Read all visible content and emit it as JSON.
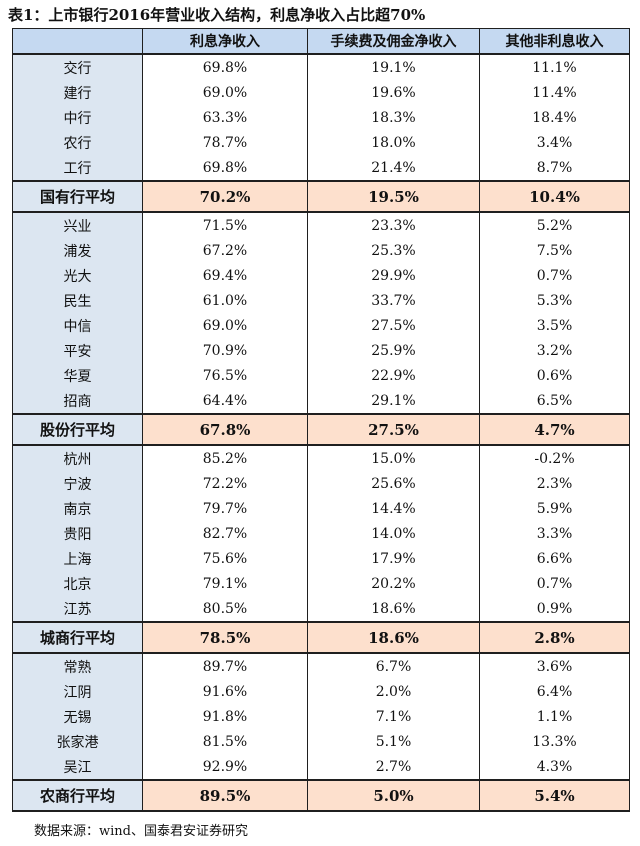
{
  "title": "表1：上市银行2016年营业收入结构，利息净收入占比超70%",
  "headers": [
    "",
    "利息净收入",
    "手续费及佣金净收入",
    "其他非利息收入"
  ],
  "groups": [
    {
      "rows": [
        {
          "name": "交行",
          "v": [
            "69.8%",
            "19.1%",
            "11.1%"
          ]
        },
        {
          "name": "建行",
          "v": [
            "69.0%",
            "19.6%",
            "11.4%"
          ]
        },
        {
          "name": "中行",
          "v": [
            "63.3%",
            "18.3%",
            "18.4%"
          ]
        },
        {
          "name": "农行",
          "v": [
            "78.7%",
            "18.0%",
            "3.4%"
          ]
        },
        {
          "name": "工行",
          "v": [
            "69.8%",
            "21.4%",
            "8.7%"
          ]
        }
      ],
      "avg": {
        "name": "国有行平均",
        "v": [
          "70.2%",
          "19.5%",
          "10.4%"
        ]
      }
    },
    {
      "rows": [
        {
          "name": "兴业",
          "v": [
            "71.5%",
            "23.3%",
            "5.2%"
          ]
        },
        {
          "name": "浦发",
          "v": [
            "67.2%",
            "25.3%",
            "7.5%"
          ]
        },
        {
          "name": "光大",
          "v": [
            "69.4%",
            "29.9%",
            "0.7%"
          ]
        },
        {
          "name": "民生",
          "v": [
            "61.0%",
            "33.7%",
            "5.3%"
          ]
        },
        {
          "name": "中信",
          "v": [
            "69.0%",
            "27.5%",
            "3.5%"
          ]
        },
        {
          "name": "平安",
          "v": [
            "70.9%",
            "25.9%",
            "3.2%"
          ]
        },
        {
          "name": "华夏",
          "v": [
            "76.5%",
            "22.9%",
            "0.6%"
          ]
        },
        {
          "name": "招商",
          "v": [
            "64.4%",
            "29.1%",
            "6.5%"
          ]
        }
      ],
      "avg": {
        "name": "股份行平均",
        "v": [
          "67.8%",
          "27.5%",
          "4.7%"
        ]
      }
    },
    {
      "rows": [
        {
          "name": "杭州",
          "v": [
            "85.2%",
            "15.0%",
            "-0.2%"
          ]
        },
        {
          "name": "宁波",
          "v": [
            "72.2%",
            "25.6%",
            "2.3%"
          ]
        },
        {
          "name": "南京",
          "v": [
            "79.7%",
            "14.4%",
            "5.9%"
          ]
        },
        {
          "name": "贵阳",
          "v": [
            "82.7%",
            "14.0%",
            "3.3%"
          ]
        },
        {
          "name": "上海",
          "v": [
            "75.6%",
            "17.9%",
            "6.6%"
          ]
        },
        {
          "name": "北京",
          "v": [
            "79.1%",
            "20.2%",
            "0.7%"
          ]
        },
        {
          "name": "江苏",
          "v": [
            "80.5%",
            "18.6%",
            "0.9%"
          ]
        }
      ],
      "avg": {
        "name": "城商行平均",
        "v": [
          "78.5%",
          "18.6%",
          "2.8%"
        ]
      }
    },
    {
      "rows": [
        {
          "name": "常熟",
          "v": [
            "89.7%",
            "6.7%",
            "3.6%"
          ]
        },
        {
          "name": "江阴",
          "v": [
            "91.6%",
            "2.0%",
            "6.4%"
          ]
        },
        {
          "name": "无锡",
          "v": [
            "91.8%",
            "7.1%",
            "1.1%"
          ]
        },
        {
          "name": "张家港",
          "v": [
            "81.5%",
            "5.1%",
            "13.3%"
          ]
        },
        {
          "name": "吴江",
          "v": [
            "92.9%",
            "2.7%",
            "4.3%"
          ]
        }
      ],
      "avg": {
        "name": "农商行平均",
        "v": [
          "89.5%",
          "5.0%",
          "5.4%"
        ]
      }
    }
  ],
  "source": "数据来源：wind、国泰君安证券研究"
}
